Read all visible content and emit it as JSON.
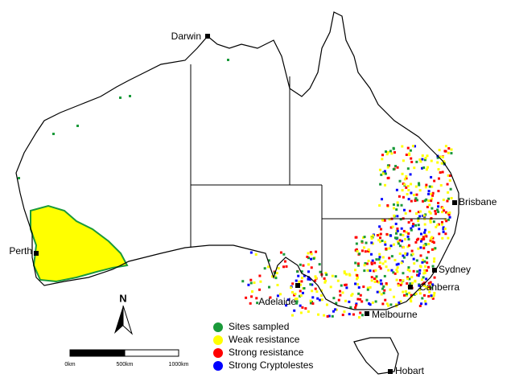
{
  "map": {
    "cities": [
      {
        "label": "Darwin"
      },
      {
        "label": "Perth"
      },
      {
        "label": "Adelaide"
      },
      {
        "label": "Melbourne"
      },
      {
        "label": "Canberra"
      },
      {
        "label": "Sydney"
      },
      {
        "label": "Brisbane"
      },
      {
        "label": "Hobart"
      }
    ],
    "legend": [
      {
        "label": "Sites sampled",
        "color": "#1a9a3a"
      },
      {
        "label": "Weak resistance",
        "color": "#ffff00"
      },
      {
        "label": "Strong resistance",
        "color": "#ff0000"
      },
      {
        "label": "Strong Cryptolestes",
        "color": "#0000ff"
      }
    ],
    "scale_bar": {
      "labels": [
        "0km",
        "500km",
        "1000km"
      ]
    },
    "north_arrow": "N"
  }
}
